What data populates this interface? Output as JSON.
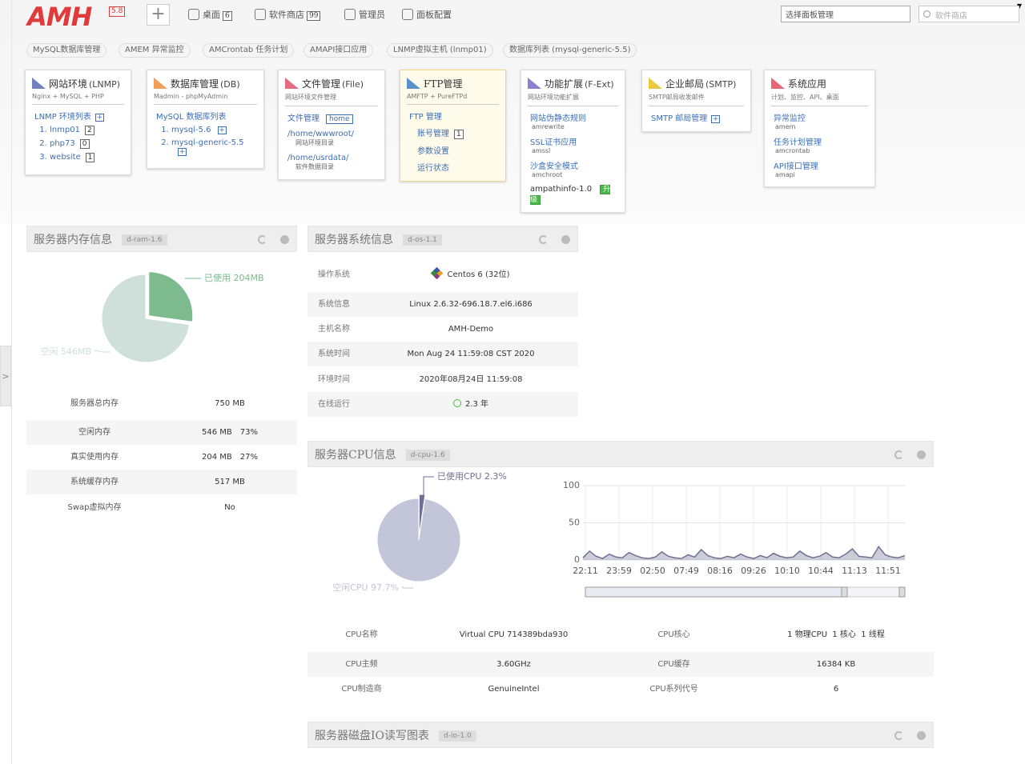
{
  "header": {
    "logo": "AMH",
    "version": "5.8",
    "nav": [
      {
        "label": "桌面",
        "badge": "6"
      },
      {
        "label": "软件商店",
        "badge": "99"
      },
      {
        "label": "管理员"
      },
      {
        "label": "面板配置"
      }
    ],
    "select": "选择面板管理",
    "search": "软件商店"
  },
  "sidebar_toggle": ">",
  "tabs": [
    "MySQL数据库管理",
    "AMEM 异常监控",
    "AMCrontab 任务计划",
    "AMAPI接口应用",
    "LNMP虚拟主机 (lnmp01)",
    "数据库列表 (mysql-generic-5.5)"
  ],
  "modules": [
    {
      "title": "网站环境",
      "code": "(LNMP)",
      "sub": "Nginx + MySQL + PHP",
      "icon_color": "#5b6bb5",
      "head": {
        "text": "LNMP 环境列表",
        "plus": true
      },
      "list": [
        {
          "text": "lnmp01",
          "badge": "2"
        },
        {
          "text": "php73",
          "badge": "0"
        },
        {
          "text": "website",
          "badge": "1"
        }
      ]
    },
    {
      "title": "数据库管理",
      "code": "(DB)",
      "sub": "Madmin - phpMyAdmin",
      "icon_color": "#f08c3c",
      "head": {
        "text": "MySQL 数据库列表"
      },
      "list": [
        {
          "text": "mysql-5.6",
          "plus": true
        },
        {
          "text": "mysql-generic-5.5",
          "plus": true
        }
      ]
    },
    {
      "title": "文件管理",
      "code": "(File)",
      "sub": "网站环境文件管理",
      "icon_color": "#e0506a",
      "head": {
        "text": "文件管理",
        "tag": "home"
      },
      "links": [
        {
          "text": "/home/wwwroot/",
          "sub": "网站环境目录"
        },
        {
          "text": "/home/usrdata/",
          "sub": "软件数据目录"
        }
      ]
    },
    {
      "title": "FTP管理",
      "sub": "AMFTP + PureFTPd",
      "icon_color": "#3b7cc4",
      "highlight": true,
      "links": [
        {
          "text": "FTP 管理"
        },
        {
          "text": "账号管理",
          "badge": "1"
        },
        {
          "text": "参数设置"
        },
        {
          "text": "运行状态"
        }
      ]
    },
    {
      "title": "功能扩展",
      "code": "(F-Ext)",
      "sub": "网站环境功能扩展",
      "icon_color": "#7a6ac8",
      "links": [
        {
          "text": "网站伪静态规则",
          "sub": "amrewrite"
        },
        {
          "text": "SSL证书应用",
          "sub": "amssl"
        },
        {
          "text": "沙盒安全模式",
          "sub": "amchroot"
        },
        {
          "text": "ampathinfo-1.0",
          "button": "升级"
        }
      ]
    },
    {
      "title": "企业邮局",
      "code": "(SMTP)",
      "sub": "SMTP邮局收发邮件",
      "icon_color": "#e6c020",
      "head": {
        "text": "SMTP 邮局管理",
        "plus": true
      }
    },
    {
      "title": "系统应用",
      "sub": "计划、监控、API、桌面",
      "icon_color": "#e24b5a",
      "links": [
        {
          "text": "异常监控",
          "sub": "amem"
        },
        {
          "text": "任务计划管理",
          "sub": "amcrontab"
        },
        {
          "text": "API接口管理",
          "sub": "amapi"
        }
      ]
    }
  ],
  "ram": {
    "title": "服务器内存信息",
    "tag": "d-ram-1.6",
    "pie": {
      "type": "pie",
      "slices": [
        {
          "label": "已使用 204MB",
          "value": 204,
          "color": "#7dbb8f"
        },
        {
          "label": "空闲 546MB",
          "value": 546,
          "color": "#cfe0da"
        }
      ]
    },
    "rows": [
      [
        "服务器总内存",
        "750 MB"
      ],
      [
        "空闲内存",
        "546 MB",
        "73%"
      ],
      [
        "真实使用内存",
        "204 MB",
        "27%"
      ],
      [
        "系统缓存内存",
        "517 MB"
      ],
      [
        "Swap虚拟内存",
        "No"
      ]
    ]
  },
  "os": {
    "title": "服务器系统信息",
    "tag": "d-os-1.1",
    "rows": [
      [
        "操作系统",
        "Centos 6 (32位)"
      ],
      [
        "系统信息",
        "Linux 2.6.32-696.18.7.el6.i686"
      ],
      [
        "主机名称",
        "AMH-Demo"
      ],
      [
        "系统时间",
        "Mon Aug 24 11:59:08 CST 2020"
      ],
      [
        "环境时间",
        "2020年08月24日 11:59:08"
      ],
      [
        "在线运行",
        "2.3 年"
      ]
    ]
  },
  "cpu": {
    "title": "服务器CPU信息",
    "tag": "d-cpu-1.6",
    "pie": {
      "type": "pie",
      "slices": [
        {
          "label": "已使用CPU 2.3%",
          "value": 2.3,
          "color": "#6e7191"
        },
        {
          "label": "空闲CPU 97.7%",
          "value": 97.7,
          "color": "#c3c6d8"
        }
      ]
    },
    "line": {
      "type": "area",
      "categories": [
        "22:11",
        "23:59",
        "02:50",
        "07:49",
        "08:16",
        "09:26",
        "10:10",
        "10:44",
        "11:13",
        "11:51"
      ],
      "values": [
        3,
        12,
        5,
        2,
        8,
        4,
        3,
        10,
        6,
        3,
        2,
        4,
        11,
        5,
        3,
        2,
        7,
        4,
        14,
        6,
        3,
        2,
        5,
        3,
        8,
        4,
        2,
        6,
        3,
        9,
        5,
        3,
        4,
        12,
        6,
        3,
        5,
        10,
        4,
        3,
        8,
        15,
        5,
        4,
        3,
        18,
        7,
        4,
        3,
        6
      ],
      "color": "#6e7191",
      "ylim": [
        0,
        100
      ],
      "yticks": [
        0,
        50,
        100
      ],
      "grid": true
    },
    "rows": [
      [
        "CPU名称",
        "Virtual CPU 714389bda930",
        "CPU核心",
        "1 物理CPU  1 核心  1 线程"
      ],
      [
        "CPU主频",
        "3.60GHz",
        "CPU缓存",
        "16384 KB"
      ],
      [
        "CPU制造商",
        "GenuineIntel",
        "CPU系列代号",
        "6"
      ]
    ]
  },
  "disk": {
    "title": "服务器磁盘IO读写图表",
    "tag": "d-io-1.0"
  }
}
